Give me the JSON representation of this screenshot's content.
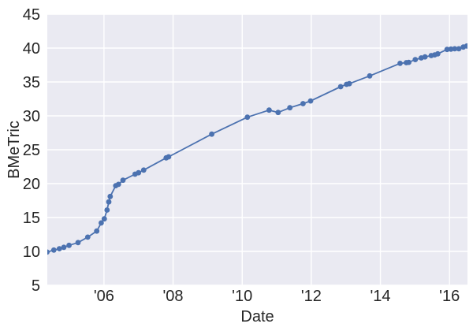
{
  "chart_data": {
    "type": "line",
    "title": "",
    "xlabel": "Date",
    "ylabel": "BMeTric",
    "xlim": [
      2004.36,
      2016.52
    ],
    "ylim": [
      5,
      45
    ],
    "grid": true,
    "legend": null,
    "xticks": {
      "values": [
        2006,
        2008,
        2010,
        2012,
        2014,
        2016
      ],
      "labels": [
        "'06",
        "'08",
        "'10",
        "'12",
        "'14",
        "'16"
      ]
    },
    "yticks": {
      "values": [
        5,
        10,
        15,
        20,
        25,
        30,
        35,
        40,
        45
      ],
      "labels": [
        "5",
        "10",
        "15",
        "20",
        "25",
        "30",
        "35",
        "40",
        "45"
      ]
    },
    "colors": {
      "line": "#4C72B0",
      "marker": "#4C72B0",
      "axes_background": "#EAEAF2",
      "grid": "#FFFFFF",
      "text": "#262626",
      "figure_background": "#FFFFFF"
    },
    "series": [
      {
        "name": "BMeTric",
        "color": "#4C72B0",
        "line_width": 1.8,
        "marker": "circle",
        "marker_radius": 3.4,
        "points": [
          [
            2004.35,
            9.9
          ],
          [
            2004.55,
            10.2
          ],
          [
            2004.71,
            10.4
          ],
          [
            2004.84,
            10.6
          ],
          [
            2004.99,
            10.9
          ],
          [
            2005.25,
            11.3
          ],
          [
            2005.53,
            12.1
          ],
          [
            2005.79,
            13.0
          ],
          [
            2005.92,
            14.2
          ],
          [
            2006.01,
            14.8
          ],
          [
            2006.09,
            16.1
          ],
          [
            2006.14,
            17.3
          ],
          [
            2006.18,
            18.1
          ],
          [
            2006.34,
            19.7
          ],
          [
            2006.42,
            19.9
          ],
          [
            2006.55,
            20.5
          ],
          [
            2006.9,
            21.4
          ],
          [
            2007.0,
            21.6
          ],
          [
            2007.15,
            22.0
          ],
          [
            2007.8,
            23.8
          ],
          [
            2007.87,
            23.95
          ],
          [
            2009.12,
            27.3
          ],
          [
            2010.15,
            29.8
          ],
          [
            2010.78,
            30.85
          ],
          [
            2011.04,
            30.5
          ],
          [
            2011.38,
            31.2
          ],
          [
            2011.76,
            31.8
          ],
          [
            2011.98,
            32.2
          ],
          [
            2012.85,
            34.3
          ],
          [
            2013.02,
            34.65
          ],
          [
            2013.1,
            34.75
          ],
          [
            2013.69,
            35.9
          ],
          [
            2014.57,
            37.75
          ],
          [
            2014.75,
            37.85
          ],
          [
            2014.82,
            37.9
          ],
          [
            2015.01,
            38.3
          ],
          [
            2015.18,
            38.55
          ],
          [
            2015.29,
            38.7
          ],
          [
            2015.47,
            38.9
          ],
          [
            2015.57,
            39.0
          ],
          [
            2015.66,
            39.15
          ],
          [
            2015.93,
            39.8
          ],
          [
            2016.04,
            39.85
          ],
          [
            2016.15,
            39.9
          ],
          [
            2016.27,
            39.9
          ],
          [
            2016.4,
            40.15
          ],
          [
            2016.5,
            40.3
          ]
        ]
      }
    ]
  }
}
